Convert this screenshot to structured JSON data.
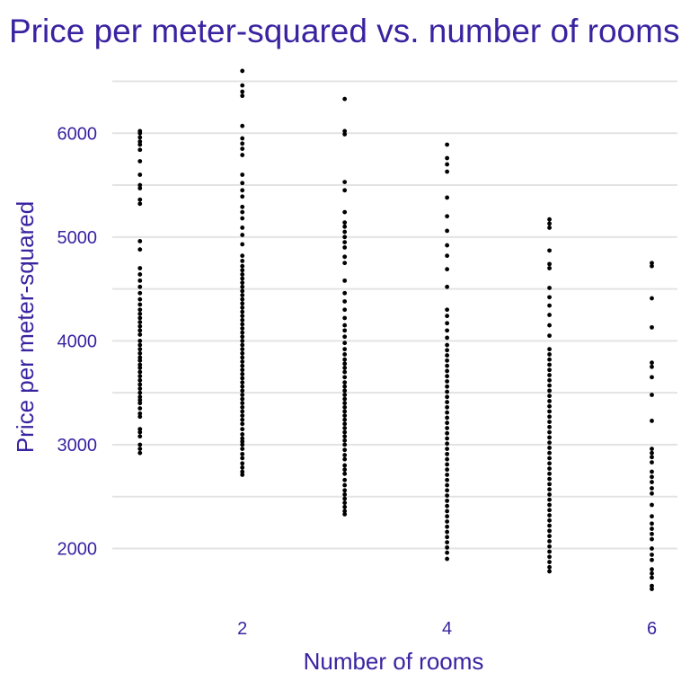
{
  "chart_data": {
    "type": "scatter",
    "title": "Price per meter-squared vs. number of rooms",
    "xlabel": "Number of rooms",
    "ylabel": "Price per meter-squared",
    "xlim": [
      0.73,
      6.25
    ],
    "ylim": [
      1520,
      6660
    ],
    "x_ticks": [
      2,
      4,
      6
    ],
    "y_ticks": [
      2000,
      3000,
      4000,
      5000,
      6000
    ],
    "grid": "horizontal",
    "point_color": "#000000",
    "text_color": "#3a23a0",
    "series": [
      {
        "x": 1,
        "y": [
          2920,
          2960,
          3000,
          3080,
          3120,
          3150,
          3270,
          3300,
          3350,
          3400,
          3430,
          3460,
          3500,
          3540,
          3580,
          3620,
          3660,
          3700,
          3740,
          3770,
          3810,
          3840,
          3880,
          3920,
          3960,
          4000,
          4060,
          4100,
          4140,
          4180,
          4220,
          4260,
          4300,
          4350,
          4400,
          4460,
          4520,
          4580,
          4640,
          4700,
          4880,
          4960,
          5320,
          5360,
          5470,
          5500,
          5600,
          5730,
          5840,
          5890,
          5920,
          5960,
          6000,
          6020
        ]
      },
      {
        "x": 2,
        "y": [
          2710,
          2740,
          2780,
          2820,
          2870,
          2910,
          2960,
          3000,
          3030,
          3060,
          3100,
          3150,
          3200,
          3240,
          3280,
          3320,
          3360,
          3400,
          3440,
          3480,
          3520,
          3560,
          3600,
          3640,
          3680,
          3720,
          3760,
          3800,
          3840,
          3880,
          3920,
          3960,
          4000,
          4040,
          4080,
          4120,
          4160,
          4200,
          4240,
          4280,
          4320,
          4360,
          4400,
          4440,
          4480,
          4520,
          4560,
          4600,
          4640,
          4680,
          4720,
          4770,
          4820,
          4930,
          5020,
          5090,
          5180,
          5240,
          5290,
          5390,
          5450,
          5520,
          5600,
          5790,
          5850,
          5900,
          5950,
          6070,
          6360,
          6400,
          6460,
          6600
        ]
      },
      {
        "x": 3,
        "y": [
          2330,
          2360,
          2400,
          2440,
          2480,
          2520,
          2560,
          2610,
          2660,
          2720,
          2760,
          2800,
          2860,
          2900,
          2950,
          3000,
          3040,
          3080,
          3120,
          3160,
          3200,
          3240,
          3280,
          3320,
          3360,
          3400,
          3440,
          3480,
          3520,
          3560,
          3600,
          3650,
          3700,
          3740,
          3780,
          3820,
          3870,
          3920,
          3980,
          4040,
          4100,
          4150,
          4220,
          4300,
          4380,
          4460,
          4580,
          4750,
          4810,
          4900,
          4950,
          5000,
          5050,
          5100,
          5140,
          5240,
          5450,
          5530,
          5990,
          6020,
          6330
        ]
      },
      {
        "x": 4,
        "y": [
          1900,
          1960,
          2010,
          2060,
          2110,
          2160,
          2210,
          2260,
          2310,
          2360,
          2410,
          2460,
          2510,
          2560,
          2610,
          2660,
          2710,
          2760,
          2810,
          2860,
          2910,
          2960,
          3010,
          3060,
          3110,
          3160,
          3210,
          3260,
          3310,
          3360,
          3410,
          3460,
          3510,
          3560,
          3610,
          3660,
          3710,
          3760,
          3810,
          3860,
          3910,
          3960,
          4030,
          4100,
          4170,
          4240,
          4300,
          4520,
          4690,
          4820,
          4920,
          5060,
          5200,
          5380,
          5630,
          5700,
          5760,
          5890
        ]
      },
      {
        "x": 5,
        "y": [
          1780,
          1820,
          1870,
          1920,
          1970,
          2020,
          2070,
          2120,
          2170,
          2220,
          2270,
          2320,
          2370,
          2420,
          2470,
          2520,
          2570,
          2620,
          2670,
          2720,
          2770,
          2820,
          2870,
          2920,
          2970,
          3020,
          3070,
          3120,
          3170,
          3220,
          3270,
          3320,
          3370,
          3420,
          3470,
          3520,
          3570,
          3620,
          3670,
          3720,
          3770,
          3820,
          3870,
          3920,
          4050,
          4150,
          4250,
          4340,
          4420,
          4510,
          4700,
          4740,
          4870,
          5090,
          5130,
          5170
        ]
      },
      {
        "x": 6,
        "y": [
          1610,
          1640,
          1720,
          1760,
          1800,
          1890,
          1940,
          2000,
          2090,
          2140,
          2190,
          2240,
          2310,
          2420,
          2530,
          2580,
          2640,
          2690,
          2740,
          2830,
          2880,
          2920,
          2960,
          3230,
          3480,
          3650,
          3750,
          3790,
          4130,
          4410,
          4720,
          4750
        ]
      }
    ]
  }
}
